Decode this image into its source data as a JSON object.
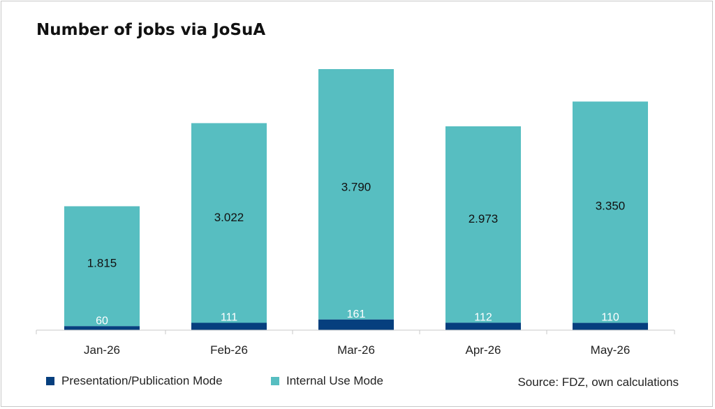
{
  "title": "Number of jobs via JoSuA",
  "source": "Source: FDZ, own calculations",
  "colors": {
    "presentation": "#063f7e",
    "internal": "#57bec1"
  },
  "chart_data": {
    "type": "bar",
    "stacked": true,
    "title": "Number of jobs via JoSuA",
    "categories": [
      "Jan-26",
      "Feb-26",
      "Mar-26",
      "Apr-26",
      "May-26"
    ],
    "series": [
      {
        "name": "Presentation/Publication Mode",
        "values": [
          60,
          111,
          161,
          112,
          110
        ],
        "labels": [
          "60",
          "111",
          "161",
          "112",
          "110"
        ],
        "color": "#063f7e"
      },
      {
        "name": "Internal Use Mode",
        "values": [
          1815,
          3022,
          3790,
          2973,
          3350
        ],
        "labels": [
          "1.815",
          "3.022",
          "3.790",
          "2.973",
          "3.350"
        ],
        "color": "#57bec1"
      }
    ],
    "ylim": [
      0,
      3951
    ],
    "grid": false,
    "legend": "bottom-left"
  }
}
